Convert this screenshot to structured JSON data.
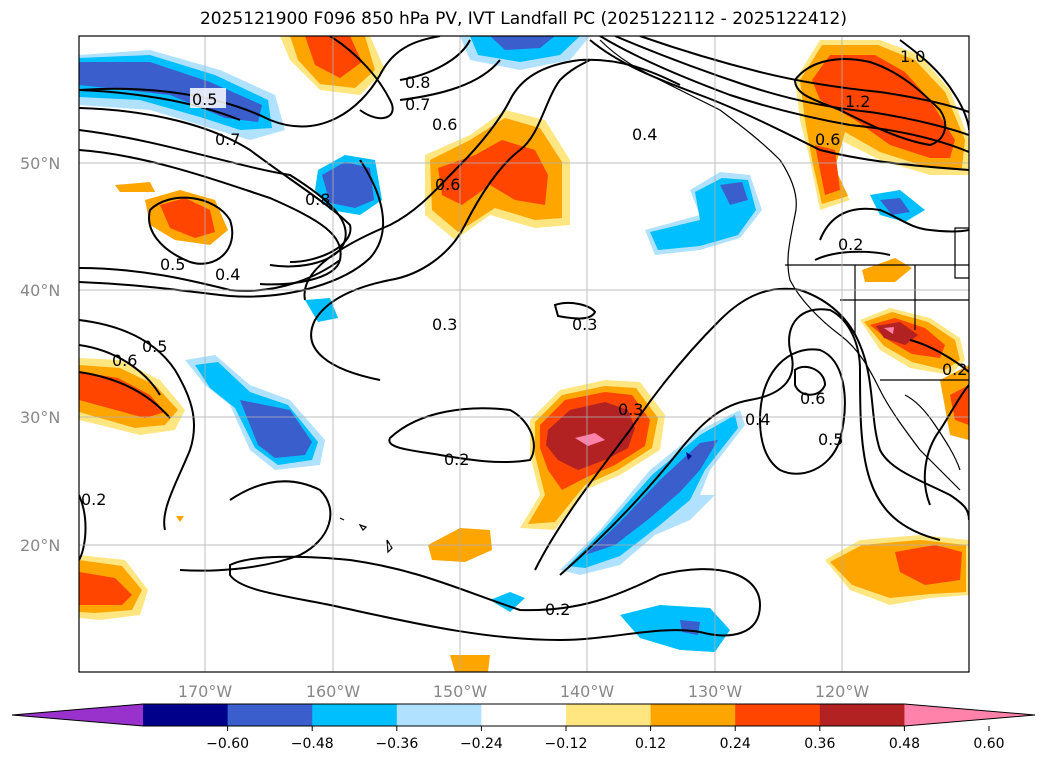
{
  "title": "2025121900 F096 850 hPa PV, IVT Landfall PC (2025122112 - 2025122412)",
  "lat_labels": [
    "50°N",
    "40°N",
    "30°N",
    "20°N"
  ],
  "lon_labels": [
    "170°W",
    "160°W",
    "150°W",
    "140°W",
    "130°W",
    "120°W"
  ],
  "colorbar": {
    "ticks": [
      "−0.60",
      "−0.48",
      "−0.36",
      "−0.24",
      "−0.12",
      "0.12",
      "0.24",
      "0.36",
      "0.48",
      "0.60"
    ],
    "colors": [
      "#9932cc",
      "#00008b",
      "#3a5fcd",
      "#00bfff",
      "#b0e2ff",
      "#ffffff",
      "#ffe680",
      "#ffa500",
      "#ff4500",
      "#b22222",
      "#ff82ab"
    ]
  },
  "contour_labels": [
    "0.5",
    "0.7",
    "0.8",
    "0.8",
    "0.7",
    "0.6",
    "0.4",
    "0.5",
    "0.4",
    "0.3",
    "0.3",
    "0.2",
    "0.3",
    "0.4",
    "0.6",
    "0.5",
    "0.2",
    "0.6",
    "0.5",
    "0.2",
    "0.2",
    "1.2",
    "1.0",
    "0.6",
    "0.2"
  ]
}
